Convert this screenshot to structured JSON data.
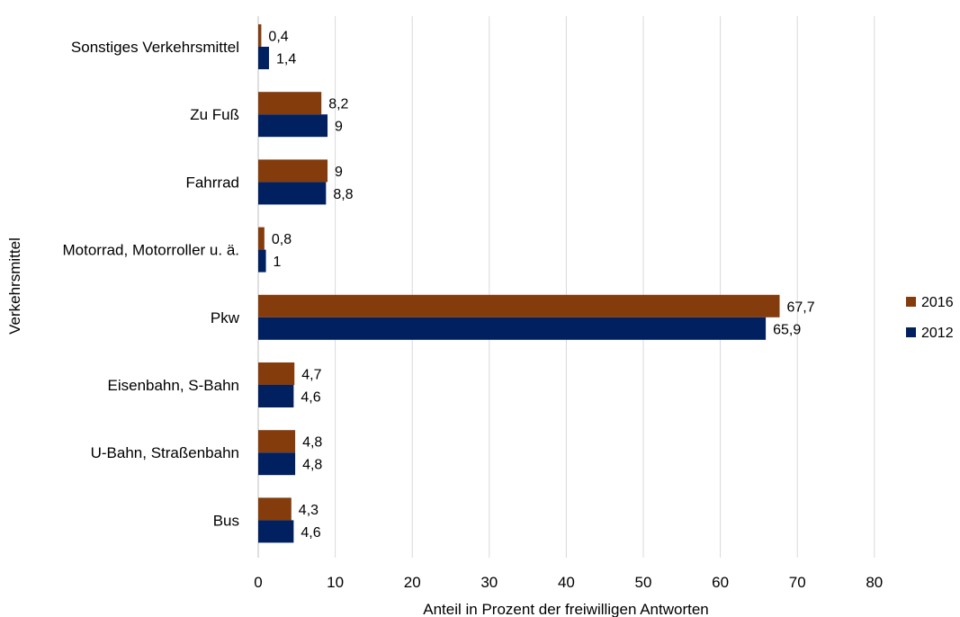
{
  "chart_data": {
    "type": "bar",
    "orientation": "horizontal",
    "categories": [
      "Sonstiges Verkehrsmittel",
      "Zu Fuß",
      "Fahrrad",
      "Motorrad, Motorroller u. ä.",
      "Pkw",
      "Eisenbahn, S-Bahn",
      "U-Bahn, Straßenbahn",
      "Bus"
    ],
    "series": [
      {
        "name": "2016",
        "color": "#843c0c",
        "values": [
          0.4,
          8.2,
          9,
          0.8,
          67.7,
          4.7,
          4.8,
          4.3
        ],
        "labels": [
          "0,4",
          "8,2",
          "9",
          "0,8",
          "67,7",
          "4,7",
          "4,8",
          "4,3"
        ]
      },
      {
        "name": "2012",
        "color": "#002060",
        "values": [
          1.4,
          9,
          8.8,
          1,
          65.9,
          4.6,
          4.8,
          4.6
        ],
        "labels": [
          "1,4",
          "9",
          "8,8",
          "1",
          "65,9",
          "4,6",
          "4,8",
          "4,6"
        ]
      }
    ],
    "xlabel": "Anteil in Prozent der freiwilligen Antworten",
    "ylabel": "Verkehrsmittel",
    "xlim": [
      0,
      80
    ],
    "xticks": [
      0,
      10,
      20,
      30,
      40,
      50,
      60,
      70,
      80
    ],
    "xtick_labels": [
      "0",
      "10",
      "20",
      "30",
      "40",
      "50",
      "60",
      "70",
      "80"
    ],
    "grid": true,
    "legend_position": "right"
  }
}
